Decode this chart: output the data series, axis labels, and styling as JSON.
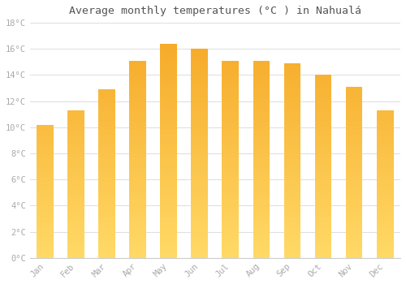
{
  "title": "Average monthly temperatures (°C ) in Nahualá",
  "months": [
    "Jan",
    "Feb",
    "Mar",
    "Apr",
    "May",
    "Jun",
    "Jul",
    "Aug",
    "Sep",
    "Oct",
    "Nov",
    "Dec"
  ],
  "values": [
    10.2,
    11.3,
    12.9,
    15.1,
    16.4,
    16.0,
    15.1,
    15.1,
    14.9,
    14.0,
    13.1,
    11.3
  ],
  "bar_color_bottom": "#FFD966",
  "bar_color_top": "#F5A623",
  "background_color": "#ffffff",
  "grid_color": "#e0e0e0",
  "text_color": "#aaaaaa",
  "title_color": "#555555",
  "ylim": [
    0,
    18
  ],
  "yticks": [
    0,
    2,
    4,
    6,
    8,
    10,
    12,
    14,
    16,
    18
  ],
  "title_fontsize": 9.5,
  "tick_fontsize": 7.5,
  "bar_width": 0.55,
  "n_grad": 100
}
